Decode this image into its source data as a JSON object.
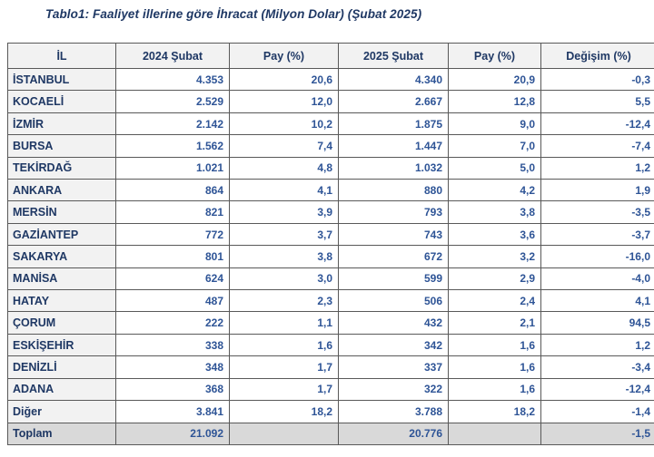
{
  "title": "Tablo1: Faaliyet illerine göre İhracat (Milyon Dolar) (Şubat 2025)",
  "colors": {
    "title_navy": "#1f3864",
    "number_blue": "#2e5496",
    "header_and_il_column_bg": "#f2f2f2",
    "total_row_bg": "#d9d9d9",
    "border_gray": "#595959"
  },
  "table": {
    "headers": {
      "il": "İL",
      "feb2024": "2024 Şubat",
      "pay2024": "Pay (%)",
      "feb2025": "2025 Şubat",
      "pay2025": "Pay (%)",
      "change": "Değişim (%)"
    },
    "rows": [
      {
        "il": "İSTANBUL",
        "v2024": "4.353",
        "pay2024": "20,6",
        "v2025": "4.340",
        "pay2025": "20,9",
        "degisim": "-0,3",
        "is_total": false
      },
      {
        "il": "KOCAELİ",
        "v2024": "2.529",
        "pay2024": "12,0",
        "v2025": "2.667",
        "pay2025": "12,8",
        "degisim": "5,5",
        "is_total": false
      },
      {
        "il": "İZMİR",
        "v2024": "2.142",
        "pay2024": "10,2",
        "v2025": "1.875",
        "pay2025": "9,0",
        "degisim": "-12,4",
        "is_total": false
      },
      {
        "il": "BURSA",
        "v2024": "1.562",
        "pay2024": "7,4",
        "v2025": "1.447",
        "pay2025": "7,0",
        "degisim": "-7,4",
        "is_total": false
      },
      {
        "il": "TEKİRDAĞ",
        "v2024": "1.021",
        "pay2024": "4,8",
        "v2025": "1.032",
        "pay2025": "5,0",
        "degisim": "1,2",
        "is_total": false
      },
      {
        "il": "ANKARA",
        "v2024": "864",
        "pay2024": "4,1",
        "v2025": "880",
        "pay2025": "4,2",
        "degisim": "1,9",
        "is_total": false
      },
      {
        "il": "MERSİN",
        "v2024": "821",
        "pay2024": "3,9",
        "v2025": "793",
        "pay2025": "3,8",
        "degisim": "-3,5",
        "is_total": false
      },
      {
        "il": "GAZİANTEP",
        "v2024": "772",
        "pay2024": "3,7",
        "v2025": "743",
        "pay2025": "3,6",
        "degisim": "-3,7",
        "is_total": false
      },
      {
        "il": "SAKARYA",
        "v2024": "801",
        "pay2024": "3,8",
        "v2025": "672",
        "pay2025": "3,2",
        "degisim": "-16,0",
        "is_total": false
      },
      {
        "il": "MANİSA",
        "v2024": "624",
        "pay2024": "3,0",
        "v2025": "599",
        "pay2025": "2,9",
        "degisim": "-4,0",
        "is_total": false
      },
      {
        "il": "HATAY",
        "v2024": "487",
        "pay2024": "2,3",
        "v2025": "506",
        "pay2025": "2,4",
        "degisim": "4,1",
        "is_total": false
      },
      {
        "il": "ÇORUM",
        "v2024": "222",
        "pay2024": "1,1",
        "v2025": "432",
        "pay2025": "2,1",
        "degisim": "94,5",
        "is_total": false
      },
      {
        "il": "ESKİŞEHİR",
        "v2024": "338",
        "pay2024": "1,6",
        "v2025": "342",
        "pay2025": "1,6",
        "degisim": "1,2",
        "is_total": false
      },
      {
        "il": "DENİZLİ",
        "v2024": "348",
        "pay2024": "1,7",
        "v2025": "337",
        "pay2025": "1,6",
        "degisim": "-3,4",
        "is_total": false
      },
      {
        "il": "ADANA",
        "v2024": "368",
        "pay2024": "1,7",
        "v2025": "322",
        "pay2025": "1,6",
        "degisim": "-12,4",
        "is_total": false
      },
      {
        "il": "Diğer",
        "v2024": "3.841",
        "pay2024": "18,2",
        "v2025": "3.788",
        "pay2025": "18,2",
        "degisim": "-1,4",
        "is_total": false
      },
      {
        "il": "Toplam",
        "v2024": "21.092",
        "pay2024": "",
        "v2025": "20.776",
        "pay2025": "",
        "degisim": "-1,5",
        "is_total": true
      }
    ]
  }
}
